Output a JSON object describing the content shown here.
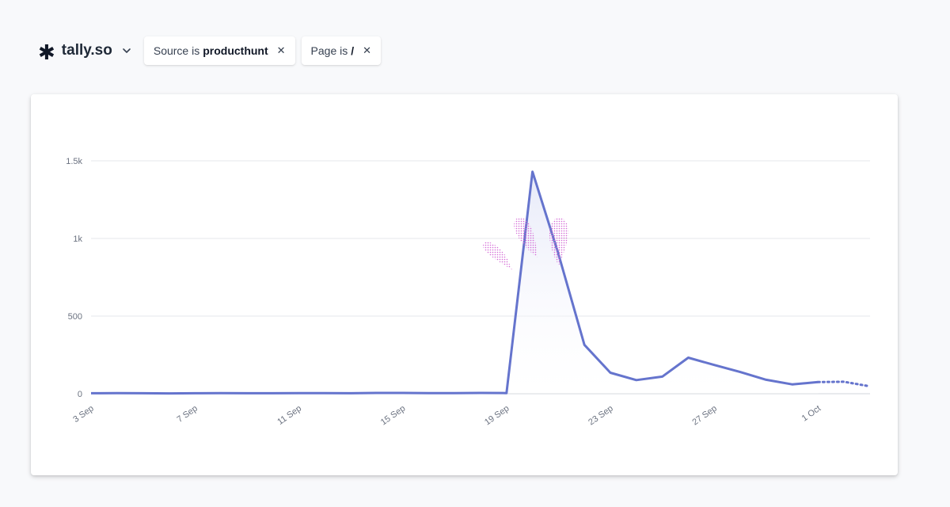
{
  "header": {
    "site_logo_glyph": "✱",
    "site_name": "tally.so",
    "filters": [
      {
        "prefix": "Source is",
        "value": "producthunt"
      },
      {
        "prefix": "Page is",
        "value": "/"
      }
    ]
  },
  "colors": {
    "line": "#6574cd",
    "area_top": "#e4e7f8",
    "grid": "#e5e7eb",
    "decoration": "#d46ad6"
  },
  "chart_data": {
    "type": "area",
    "x": [
      "3 Sep",
      "4 Sep",
      "5 Sep",
      "6 Sep",
      "7 Sep",
      "8 Sep",
      "9 Sep",
      "10 Sep",
      "11 Sep",
      "12 Sep",
      "13 Sep",
      "14 Sep",
      "15 Sep",
      "16 Sep",
      "17 Sep",
      "18 Sep",
      "19 Sep",
      "20 Sep",
      "21 Sep",
      "22 Sep",
      "23 Sep",
      "24 Sep",
      "25 Sep",
      "26 Sep",
      "27 Sep",
      "28 Sep",
      "29 Sep",
      "30 Sep",
      "1 Oct",
      "2 Oct",
      "3 Oct"
    ],
    "values": [
      3,
      4,
      3,
      2,
      3,
      4,
      3,
      3,
      4,
      4,
      3,
      5,
      5,
      4,
      4,
      5,
      4,
      1430,
      900,
      315,
      135,
      88,
      110,
      232,
      185,
      140,
      90,
      60,
      75,
      77,
      75
    ],
    "incomplete_from_index": 29,
    "incomplete_last_value": 50,
    "x_tick_labels": [
      "3 Sep",
      "7 Sep",
      "11 Sep",
      "15 Sep",
      "19 Sep",
      "23 Sep",
      "27 Sep",
      "1 Oct"
    ],
    "y_tick_labels": [
      "0",
      "500",
      "1k",
      "1.5k"
    ],
    "y_ticks": [
      0,
      500,
      1000,
      1500
    ],
    "ylim": [
      0,
      1500
    ],
    "grid": true
  }
}
